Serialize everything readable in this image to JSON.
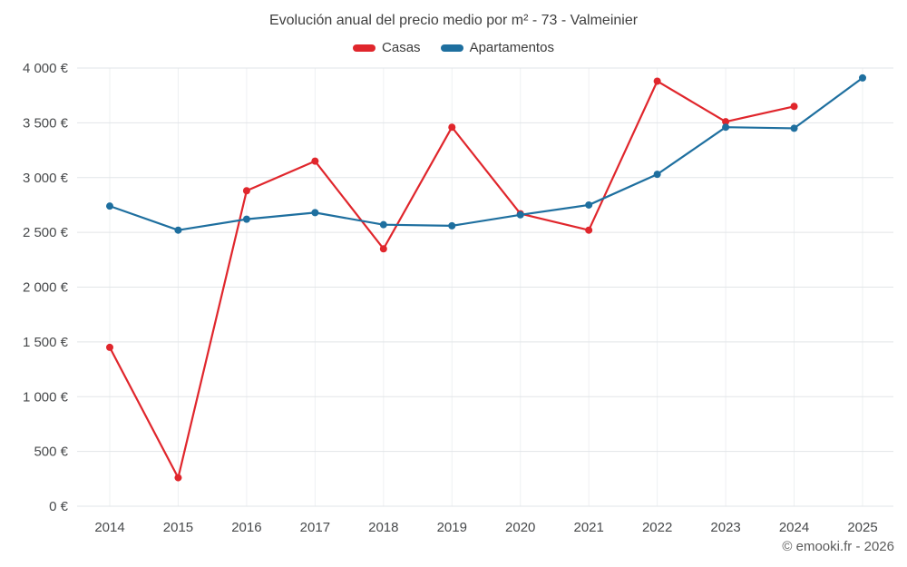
{
  "chart_data": {
    "type": "line",
    "title": "Evolución anual del precio medio por m² - 73 - Valmeinier",
    "categories": [
      "2014",
      "2015",
      "2016",
      "2017",
      "2018",
      "2019",
      "2020",
      "2021",
      "2022",
      "2023",
      "2024",
      "2025"
    ],
    "series": [
      {
        "name": "Casas",
        "color": "#e0262c",
        "values": [
          1450,
          260,
          2880,
          3150,
          2350,
          3460,
          2670,
          2520,
          3880,
          3510,
          3650,
          null
        ]
      },
      {
        "name": "Apartamentos",
        "color": "#1e6f9f",
        "values": [
          2740,
          2520,
          2620,
          2680,
          2570,
          2560,
          2660,
          2750,
          3030,
          3460,
          3450,
          3910
        ]
      }
    ],
    "ylim": [
      0,
      4000
    ],
    "ytick_step": 500,
    "y_suffix": " €",
    "grid": true,
    "legend_position": "top"
  },
  "footer": {
    "copyright": "© emooki.fr - 2026"
  }
}
